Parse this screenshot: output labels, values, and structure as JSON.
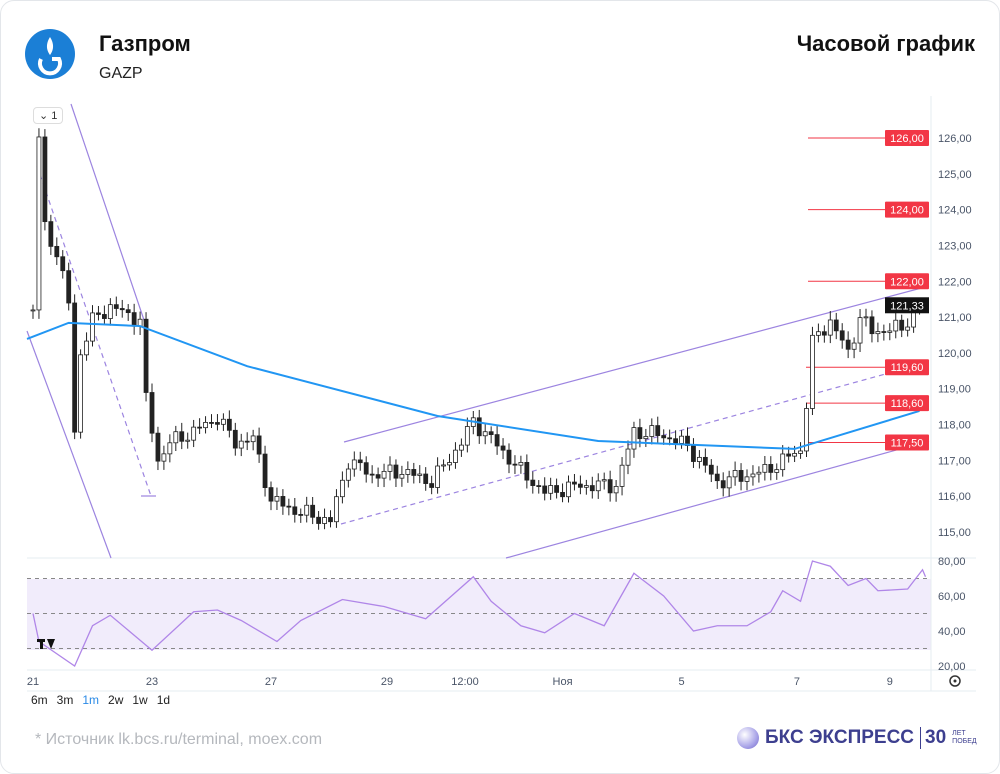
{
  "header": {
    "title": "Газпром",
    "ticker": "GAZP",
    "chart_type": "Часовой график"
  },
  "legend_toggle": "⌄ 1",
  "ranges": [
    {
      "label": "6m"
    },
    {
      "label": "3m"
    },
    {
      "label": "1m",
      "active": true
    },
    {
      "label": "2w"
    },
    {
      "label": "1w"
    },
    {
      "label": "1d"
    }
  ],
  "footer": {
    "source": "*  Источник lk.bcs.ru/terminal, moex.com",
    "brand": "БКС ЭКСПРЕСС",
    "brand_badge": "30",
    "brand_badge_sub": "ЛЕТ ПОБЕД"
  },
  "colors": {
    "up": "#222222",
    "level": "#f23645",
    "ma": "#2196f3",
    "channel": "#9c84e0",
    "rsi": "#b086e8",
    "logo": "#1b7fd6"
  },
  "chart_data": {
    "type": "candlestick",
    "xlabel": "",
    "ylabel": "",
    "ylim": [
      114.4,
      127
    ],
    "y_ticks": [
      "126,00",
      "125,00",
      "124,00",
      "123,00",
      "122,00",
      "121,00",
      "120,00",
      "119,00",
      "118,00",
      "117,00",
      "116,00",
      "115,00"
    ],
    "x_ticks": [
      {
        "label": "21",
        "bar": 0
      },
      {
        "label": "23",
        "bar": 20
      },
      {
        "label": "27",
        "bar": 40
      },
      {
        "label": "29",
        "bar": 59.5
      },
      {
        "label": "12:00",
        "bar": 72.6
      },
      {
        "label": "Ноя",
        "bar": 89
      },
      {
        "label": "5",
        "bar": 109
      },
      {
        "label": "7",
        "bar": 128.4
      },
      {
        "label": "9",
        "bar": 144
      }
    ],
    "levels": [
      {
        "value": 126.0,
        "label": "126,00"
      },
      {
        "value": 124.0,
        "label": "124,00"
      },
      {
        "value": 122.0,
        "label": "122,00"
      },
      {
        "value": 119.6,
        "label": "119,60"
      },
      {
        "value": 118.6,
        "label": "118,60"
      },
      {
        "value": 117.5,
        "label": "117,50"
      }
    ],
    "last_price": {
      "value": 121.33,
      "label": "121,33"
    },
    "price_path": [
      [
        0,
        121.2
      ],
      [
        1,
        126.0
      ],
      [
        2,
        123.5
      ],
      [
        4,
        122.8
      ],
      [
        6,
        121.4
      ],
      [
        7,
        117.8
      ],
      [
        8,
        120.0
      ],
      [
        10,
        120.9
      ],
      [
        13,
        121.3
      ],
      [
        18,
        120.9
      ],
      [
        19,
        118.7
      ],
      [
        21,
        117.0
      ],
      [
        23,
        117.5
      ],
      [
        27,
        117.8
      ],
      [
        31,
        118.2
      ],
      [
        34,
        117.5
      ],
      [
        37,
        117.6
      ],
      [
        40,
        115.9
      ],
      [
        44,
        115.6
      ],
      [
        50,
        115.3
      ],
      [
        53,
        117.0
      ],
      [
        57,
        116.6
      ],
      [
        62,
        116.7
      ],
      [
        67,
        116.4
      ],
      [
        72,
        117.5
      ],
      [
        74,
        118.1
      ],
      [
        77,
        117.6
      ],
      [
        82,
        116.7
      ],
      [
        86,
        116.1
      ],
      [
        92,
        116.3
      ],
      [
        98,
        116.3
      ],
      [
        101,
        117.8
      ],
      [
        106,
        117.7
      ],
      [
        110,
        117.4
      ],
      [
        115,
        116.4
      ],
      [
        123,
        116.7
      ],
      [
        129,
        117.3
      ],
      [
        130,
        118.6
      ],
      [
        131,
        120.3
      ],
      [
        134,
        120.9
      ],
      [
        137,
        120.0
      ],
      [
        139,
        121.0
      ],
      [
        141,
        120.6
      ],
      [
        146,
        120.7
      ],
      [
        149,
        121.33
      ]
    ],
    "ma_path": [
      [
        0,
        120.39
      ],
      [
        7,
        120.84
      ],
      [
        19,
        120.75
      ],
      [
        37,
        119.63
      ],
      [
        69,
        118.24
      ],
      [
        96,
        117.54
      ],
      [
        129,
        117.32
      ],
      [
        150,
        118.38
      ]
    ],
    "rsi": {
      "y_ticks": [
        "80,00",
        "60,00",
        "40,00",
        "20,00"
      ],
      "bands": [
        70,
        50,
        30
      ],
      "path": [
        [
          0,
          50
        ],
        [
          1,
          34
        ],
        [
          7,
          20
        ],
        [
          10,
          43
        ],
        [
          13,
          49
        ],
        [
          20,
          29
        ],
        [
          27,
          51
        ],
        [
          31,
          52
        ],
        [
          35,
          46
        ],
        [
          41,
          34
        ],
        [
          45,
          46
        ],
        [
          52,
          58
        ],
        [
          59,
          54
        ],
        [
          66,
          47
        ],
        [
          74,
          71
        ],
        [
          77,
          57
        ],
        [
          82,
          43
        ],
        [
          86,
          39
        ],
        [
          91,
          50
        ],
        [
          96,
          43
        ],
        [
          101,
          73
        ],
        [
          106,
          60
        ],
        [
          111,
          40
        ],
        [
          115,
          43
        ],
        [
          120,
          43
        ],
        [
          124,
          51
        ],
        [
          126,
          63
        ],
        [
          129,
          57
        ],
        [
          131,
          80
        ],
        [
          134,
          77
        ],
        [
          137,
          66
        ],
        [
          140,
          70
        ],
        [
          142,
          63
        ],
        [
          147,
          64
        ],
        [
          149.5,
          75
        ],
        [
          150,
          71
        ]
      ]
    }
  }
}
